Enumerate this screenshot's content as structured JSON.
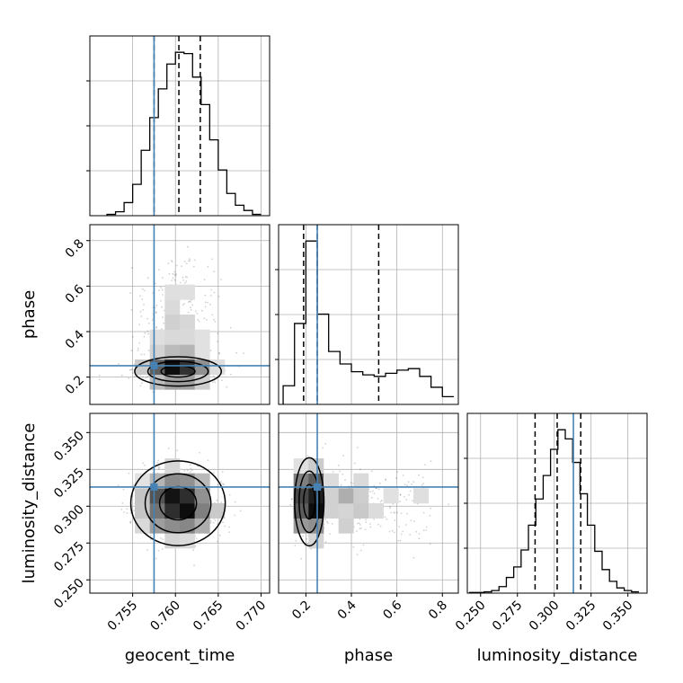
{
  "chart_data": {
    "type": "corner",
    "parameters": [
      "geocent_time",
      "phase",
      "luminosity_distance"
    ],
    "axes": {
      "geocent_time": {
        "range": [
          0.75,
          0.771
        ],
        "ticks": [
          0.755,
          0.76,
          0.765,
          0.77
        ],
        "tick_labels": [
          "0.755",
          "0.760",
          "0.765",
          "0.770"
        ]
      },
      "phase": {
        "range": [
          0.08,
          0.87
        ],
        "ticks": [
          0.2,
          0.4,
          0.6,
          0.8
        ],
        "tick_labels": [
          "0.2",
          "0.4",
          "0.6",
          "0.8"
        ]
      },
      "luminosity_distance": {
        "range": [
          0.241,
          0.363
        ],
        "ticks": [
          0.25,
          0.275,
          0.3,
          0.325,
          0.35
        ],
        "tick_labels": [
          "0.250",
          "0.275",
          "0.300",
          "0.325",
          "0.350"
        ]
      }
    },
    "truths": {
      "geocent_time": 0.7575,
      "phase": 0.25,
      "luminosity_distance": 0.313
    },
    "truth_color": "#4682b4",
    "quantiles": {
      "geocent_time": [
        0.7575,
        0.7604,
        0.7629
      ],
      "phase": [
        0.19,
        0.25,
        0.52
      ],
      "luminosity_distance": [
        0.287,
        0.302,
        0.318
      ]
    },
    "histograms": {
      "geocent_time": {
        "bin_edges": [
          0.752,
          0.753,
          0.754,
          0.755,
          0.756,
          0.757,
          0.758,
          0.759,
          0.76,
          0.761,
          0.762,
          0.763,
          0.764,
          0.765,
          0.766,
          0.767,
          0.768,
          0.769,
          0.77
        ],
        "counts": [
          1,
          3,
          10,
          24,
          50,
          75,
          97,
          116,
          125,
          124,
          106,
          85,
          58,
          35,
          17,
          8,
          4,
          1
        ]
      },
      "phase": {
        "bin_edges": [
          0.1,
          0.15,
          0.2,
          0.25,
          0.3,
          0.35,
          0.4,
          0.45,
          0.5,
          0.55,
          0.6,
          0.65,
          0.7,
          0.75,
          0.8,
          0.85
        ],
        "counts": [
          12,
          52,
          105,
          58,
          34,
          26,
          21,
          19,
          18,
          20,
          22,
          23,
          18,
          11,
          5
        ]
      },
      "luminosity_distance": {
        "bin_edges": [
          0.2425,
          0.2475,
          0.2525,
          0.2575,
          0.2625,
          0.2675,
          0.2725,
          0.2775,
          0.2825,
          0.2875,
          0.2925,
          0.2975,
          0.3025,
          0.3075,
          0.3125,
          0.3175,
          0.3225,
          0.3275,
          0.3325,
          0.3375,
          0.3425,
          0.3475,
          0.3525,
          0.3575
        ],
        "counts": [
          0.5,
          0.5,
          1,
          2,
          5,
          12,
          20,
          33,
          52,
          72,
          90,
          110,
          125,
          118,
          100,
          76,
          52,
          32,
          18,
          9,
          4,
          2,
          1
        ]
      }
    },
    "posterior_2d": {
      "phase_vs_geocent_time": {
        "center": [
          0.7603,
          0.225
        ],
        "core_spread": [
          0.0022,
          0.028
        ],
        "tail_top": 0.75
      },
      "luminosity_distance_vs_geocent_time": {
        "center": [
          0.7603,
          0.302
        ],
        "spread": [
          0.0024,
          0.0125
        ]
      },
      "luminosity_distance_vs_phase": {
        "center": [
          0.215,
          0.303
        ],
        "spread": [
          0.028,
          0.013
        ],
        "tail_right": 0.78
      }
    },
    "grid": true
  }
}
